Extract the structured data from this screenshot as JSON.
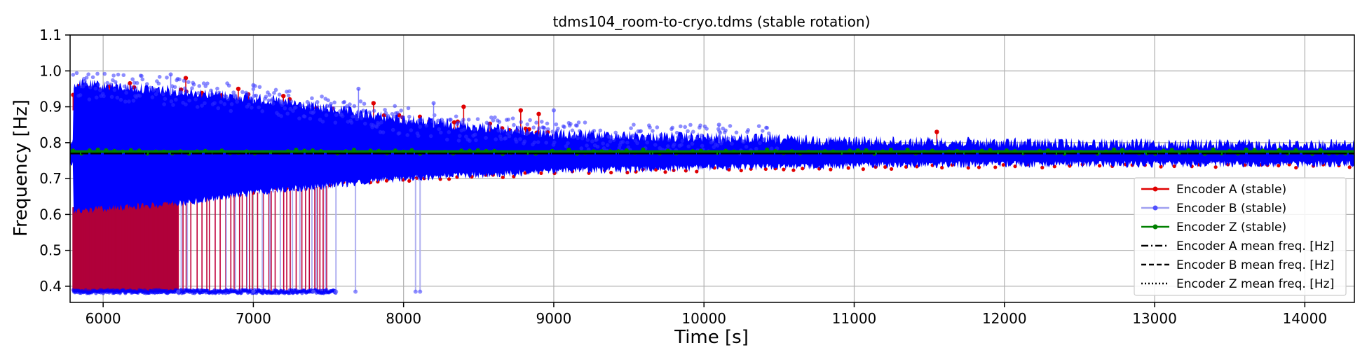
{
  "chart_data": {
    "type": "line",
    "title": "tdms104_room-to-cryo.tdms (stable rotation)",
    "xlabel": "Time [s]",
    "ylabel": "Frequency [Hz]",
    "xlim": [
      5780,
      14330
    ],
    "ylim": [
      0.355,
      1.1
    ],
    "x_ticks": [
      6000,
      7000,
      8000,
      9000,
      10000,
      11000,
      12000,
      13000,
      14000
    ],
    "y_ticks": [
      0.4,
      0.5,
      0.6,
      0.7,
      0.8,
      0.9,
      1.0,
      1.1
    ],
    "grid": true,
    "legend_position": "lower-right",
    "series": [
      {
        "name": "Encoder A (stable)",
        "color": "#ff0000",
        "style": "solid-marker",
        "envelope": {
          "x": [
            5800,
            6500,
            7000,
            7500,
            8000,
            8500,
            9000,
            10000,
            11000,
            12000,
            13000,
            14300
          ],
          "upper": [
            0.97,
            0.95,
            0.93,
            0.9,
            0.87,
            0.85,
            0.83,
            0.825,
            0.82,
            0.815,
            0.812,
            0.81
          ],
          "lower": [
            0.62,
            0.64,
            0.66,
            0.68,
            0.69,
            0.7,
            0.71,
            0.72,
            0.725,
            0.73,
            0.73,
            0.73
          ]
        },
        "outliers_high": [
          [
            6550,
            0.98
          ],
          [
            6900,
            0.95
          ],
          [
            7200,
            0.93
          ],
          [
            7800,
            0.91
          ],
          [
            8400,
            0.9
          ],
          [
            8780,
            0.89
          ],
          [
            8900,
            0.88
          ],
          [
            11550,
            0.83
          ]
        ],
        "outliers_low": [
          [
            6000,
            0.385
          ],
          [
            6300,
            0.385
          ],
          [
            6700,
            0.385
          ],
          [
            7000,
            0.385
          ],
          [
            7200,
            0.385
          ],
          [
            7350,
            0.385
          ],
          [
            7450,
            0.385
          ]
        ]
      },
      {
        "name": "Encoder B (stable)",
        "color": "#0000ff",
        "style": "faded-marker",
        "envelope": {
          "x": [
            5800,
            6500,
            7000,
            7500,
            8000,
            8500,
            9000,
            10000,
            11000,
            12000,
            13000,
            14300
          ],
          "upper": [
            0.98,
            0.96,
            0.94,
            0.91,
            0.88,
            0.86,
            0.84,
            0.83,
            0.82,
            0.815,
            0.812,
            0.81
          ],
          "lower": [
            0.6,
            0.62,
            0.65,
            0.67,
            0.69,
            0.7,
            0.71,
            0.72,
            0.725,
            0.73,
            0.73,
            0.73
          ]
        },
        "outliers_high": [
          [
            6450,
            0.99
          ],
          [
            7000,
            0.96
          ],
          [
            7700,
            0.95
          ],
          [
            8200,
            0.91
          ],
          [
            9000,
            0.89
          ],
          [
            10100,
            0.85
          ]
        ],
        "outliers_low": [
          [
            6500,
            0.385
          ],
          [
            7000,
            0.385
          ],
          [
            7400,
            0.385
          ],
          [
            7550,
            0.385
          ],
          [
            7680,
            0.385
          ],
          [
            8080,
            0.385
          ],
          [
            8110,
            0.385
          ]
        ]
      },
      {
        "name": "Encoder Z (stable)",
        "color": "#008000",
        "style": "solid-marker",
        "x": [
          5800,
          14330
        ],
        "y": [
          0.77,
          0.77
        ]
      },
      {
        "name": "Encoder A mean freq. [Hz]",
        "color": "#000000",
        "style": "dashdot",
        "y": 0.77
      },
      {
        "name": "Encoder B mean freq. [Hz]",
        "color": "#000000",
        "style": "dashed",
        "y": 0.77
      },
      {
        "name": "Encoder Z mean freq. [Hz]",
        "color": "#000000",
        "style": "dotted",
        "y": 0.77
      }
    ]
  }
}
